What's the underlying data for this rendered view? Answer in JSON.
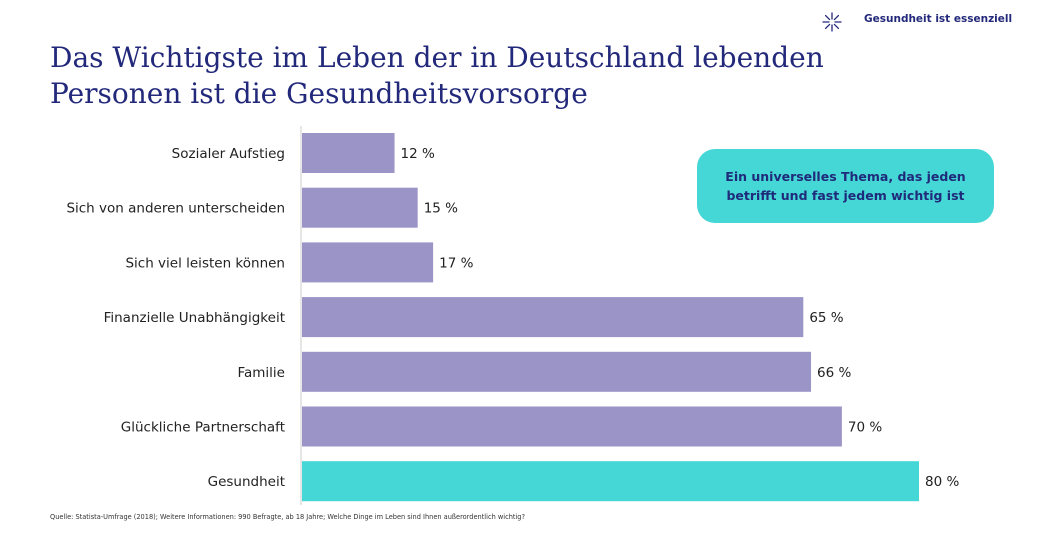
{
  "brand": {
    "label": "Gesundheit ist essenziell",
    "icon": "asterisk-sparkle-icon"
  },
  "title": "Das Wichtigste im Leben der in Deutschland lebenden Personen ist die Gesundheitsvorsorge",
  "callout": "Ein universelles Thema, das jeden betrifft und fast jedem wichtig ist",
  "source": "Quelle: Statista-Umfrage (2018); Weitere Informationen: 990 Befragte, ab 18 Jahre; Welche Dinge im Leben sind Ihnen außerordentlich wichtig?",
  "colors": {
    "bar": "#9a94c7",
    "highlight": "#45d6d6",
    "title": "#22287a",
    "axis": "#cccccc"
  },
  "chart_data": {
    "type": "bar",
    "orientation": "horizontal",
    "categories": [
      "Sozialer Aufstieg",
      "Sich von anderen unterscheiden",
      "Sich viel leisten können",
      "Finanzielle Unabhängigkeit",
      "Familie",
      "Glückliche Partnerschaft",
      "Gesundheit"
    ],
    "values": [
      12,
      15,
      17,
      65,
      66,
      70,
      80
    ],
    "value_labels": [
      "12 %",
      "15 %",
      "17 %",
      "65 %",
      "66 %",
      "70 %",
      "80 %"
    ],
    "highlight": "Gesundheit",
    "unit": "%",
    "xlim": [
      0,
      80
    ],
    "grid": false,
    "legend": false
  }
}
